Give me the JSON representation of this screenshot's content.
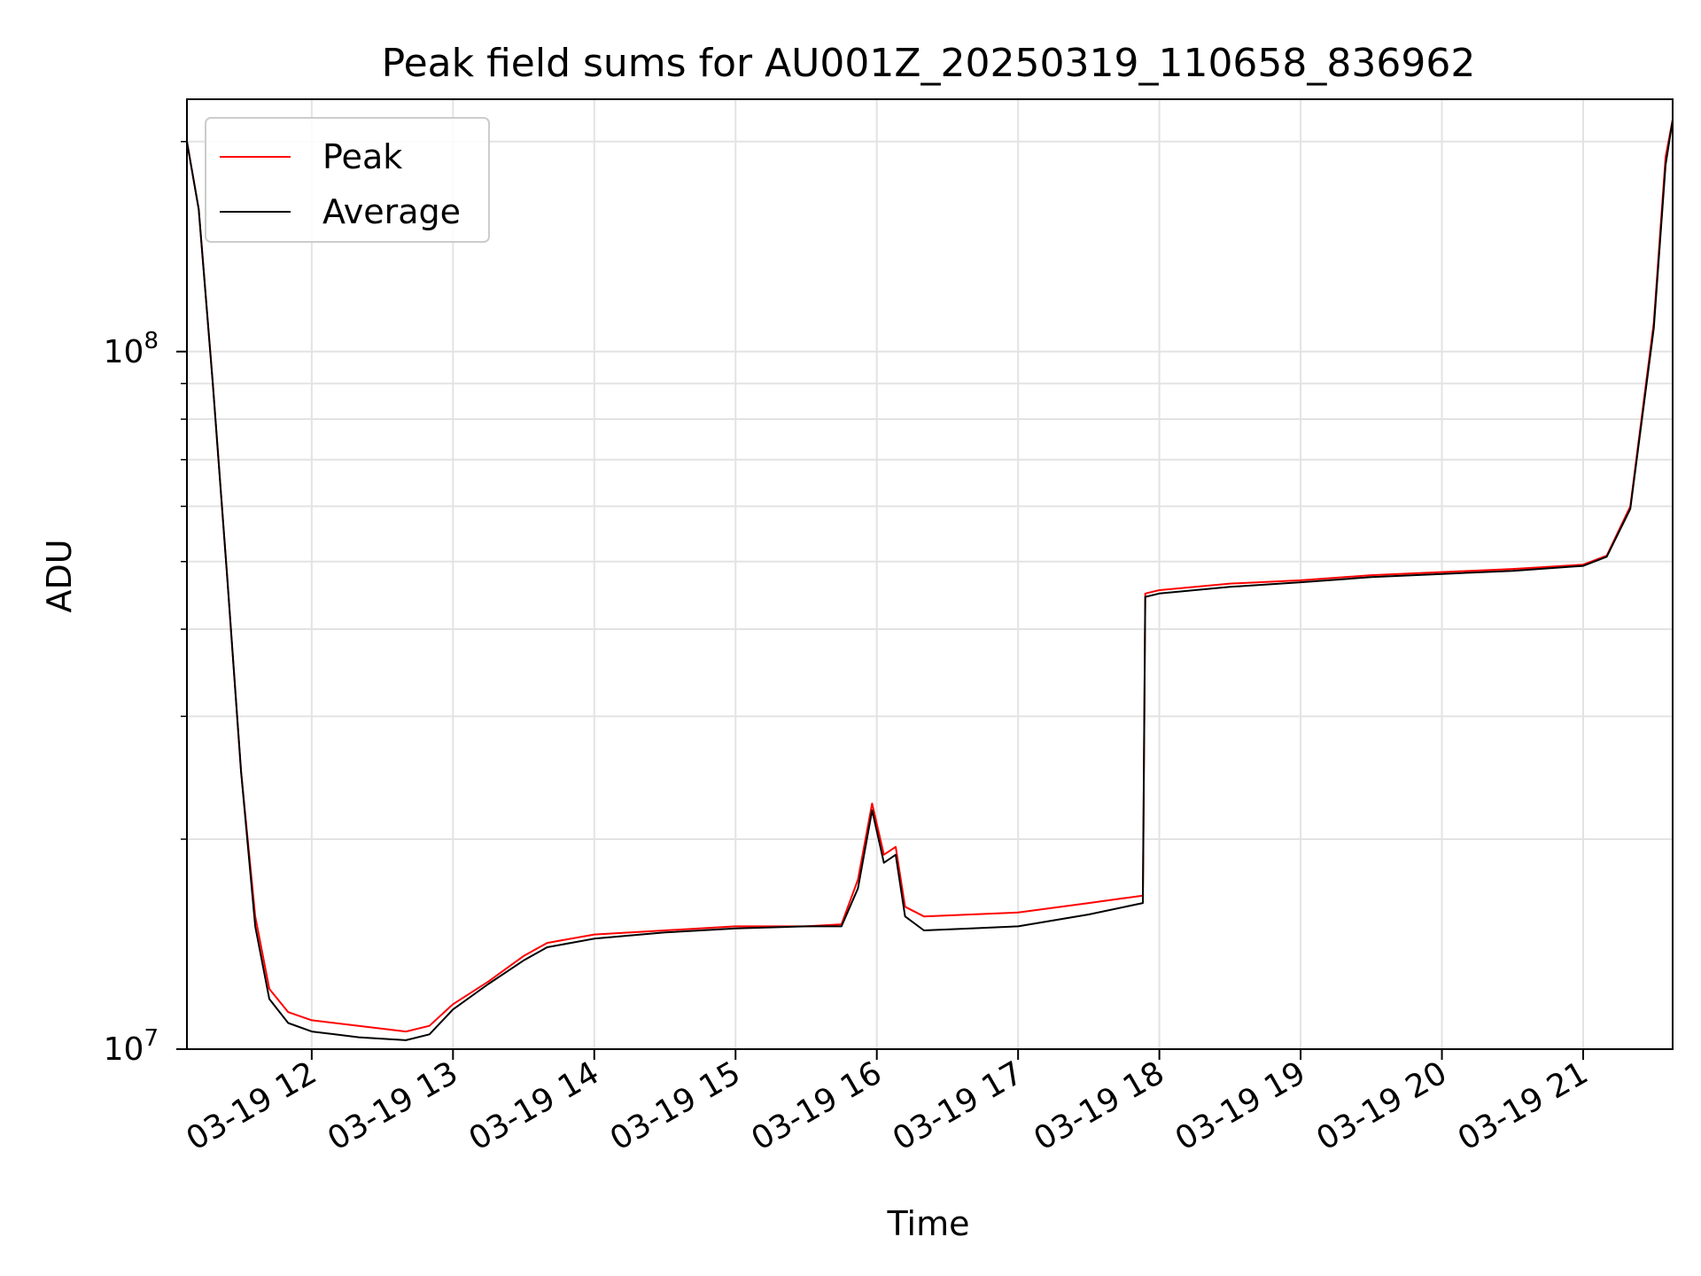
{
  "chart_data": {
    "type": "line",
    "title": "Peak field sums for AU001Z_20250319_110658_836962",
    "xlabel": "Time",
    "ylabel": "ADU",
    "yscale": "log",
    "ylim": [
      10000000,
      230000000
    ],
    "xlim": [
      "2025-03-19 11:07",
      "2025-03-19 21:38"
    ],
    "x_ticks": [
      {
        "value": "2025-03-19 12:00",
        "label": "03-19 12"
      },
      {
        "value": "2025-03-19 13:00",
        "label": "03-19 13"
      },
      {
        "value": "2025-03-19 14:00",
        "label": "03-19 14"
      },
      {
        "value": "2025-03-19 15:00",
        "label": "03-19 15"
      },
      {
        "value": "2025-03-19 16:00",
        "label": "03-19 16"
      },
      {
        "value": "2025-03-19 17:00",
        "label": "03-19 17"
      },
      {
        "value": "2025-03-19 18:00",
        "label": "03-19 18"
      },
      {
        "value": "2025-03-19 19:00",
        "label": "03-19 19"
      },
      {
        "value": "2025-03-19 20:00",
        "label": "03-19 20"
      },
      {
        "value": "2025-03-19 21:00",
        "label": "03-19 21"
      }
    ],
    "y_ticks": [
      {
        "value": 10000000,
        "base": "10",
        "exp": "7"
      },
      {
        "value": 100000000,
        "base": "10",
        "exp": "8"
      }
    ],
    "y_minor_ticks": [
      20000000,
      30000000,
      40000000,
      50000000,
      60000000,
      70000000,
      80000000,
      90000000,
      200000000
    ],
    "grid": true,
    "legend_position": "upper-left",
    "tick_label_rotation": 30,
    "series": [
      {
        "name": "Peak",
        "color": "#ff0000",
        "x": [
          "2025-03-19 11:07",
          "2025-03-19 11:12",
          "2025-03-19 11:18",
          "2025-03-19 11:24",
          "2025-03-19 11:30",
          "2025-03-19 11:36",
          "2025-03-19 11:42",
          "2025-03-19 11:50",
          "2025-03-19 12:00",
          "2025-03-19 12:20",
          "2025-03-19 12:40",
          "2025-03-19 12:50",
          "2025-03-19 13:00",
          "2025-03-19 13:15",
          "2025-03-19 13:30",
          "2025-03-19 13:40",
          "2025-03-19 14:00",
          "2025-03-19 14:30",
          "2025-03-19 15:00",
          "2025-03-19 15:30",
          "2025-03-19 15:45",
          "2025-03-19 15:52",
          "2025-03-19 15:58",
          "2025-03-19 16:03",
          "2025-03-19 16:08",
          "2025-03-19 16:12",
          "2025-03-19 16:20",
          "2025-03-19 16:40",
          "2025-03-19 17:00",
          "2025-03-19 17:30",
          "2025-03-19 17:53",
          "2025-03-19 17:54",
          "2025-03-19 18:00",
          "2025-03-19 18:30",
          "2025-03-19 19:00",
          "2025-03-19 19:30",
          "2025-03-19 20:00",
          "2025-03-19 20:30",
          "2025-03-19 21:00",
          "2025-03-19 21:10",
          "2025-03-19 21:20",
          "2025-03-19 21:30",
          "2025-03-19 21:35",
          "2025-03-19 21:38"
        ],
        "y": [
          200000000,
          160000000,
          90000000,
          48000000,
          25000000,
          15500000,
          12200000,
          11300000,
          11000000,
          10800000,
          10600000,
          10800000,
          11600000,
          12500000,
          13600000,
          14200000,
          14600000,
          14800000,
          15000000,
          15000000,
          15100000,
          17500000,
          22500000,
          19000000,
          19500000,
          16000000,
          15500000,
          15600000,
          15700000,
          16200000,
          16600000,
          45000000,
          45500000,
          46500000,
          47000000,
          47800000,
          48300000,
          48800000,
          49500000,
          51000000,
          60000000,
          110000000,
          190000000,
          215000000
        ]
      },
      {
        "name": "Average",
        "color": "#000000",
        "x": [
          "2025-03-19 11:07",
          "2025-03-19 11:12",
          "2025-03-19 11:18",
          "2025-03-19 11:24",
          "2025-03-19 11:30",
          "2025-03-19 11:36",
          "2025-03-19 11:42",
          "2025-03-19 11:50",
          "2025-03-19 12:00",
          "2025-03-19 12:20",
          "2025-03-19 12:40",
          "2025-03-19 12:50",
          "2025-03-19 13:00",
          "2025-03-19 13:15",
          "2025-03-19 13:30",
          "2025-03-19 13:40",
          "2025-03-19 14:00",
          "2025-03-19 14:30",
          "2025-03-19 15:00",
          "2025-03-19 15:30",
          "2025-03-19 15:45",
          "2025-03-19 15:52",
          "2025-03-19 15:58",
          "2025-03-19 16:03",
          "2025-03-19 16:08",
          "2025-03-19 16:12",
          "2025-03-19 16:20",
          "2025-03-19 16:40",
          "2025-03-19 17:00",
          "2025-03-19 17:30",
          "2025-03-19 17:53",
          "2025-03-19 17:54",
          "2025-03-19 18:00",
          "2025-03-19 18:30",
          "2025-03-19 19:00",
          "2025-03-19 19:30",
          "2025-03-19 20:00",
          "2025-03-19 20:30",
          "2025-03-19 21:00",
          "2025-03-19 21:10",
          "2025-03-19 21:20",
          "2025-03-19 21:30",
          "2025-03-19 21:35",
          "2025-03-19 21:38"
        ],
        "y": [
          200000000,
          160000000,
          90000000,
          48000000,
          25000000,
          15000000,
          11800000,
          10900000,
          10600000,
          10400000,
          10300000,
          10500000,
          11400000,
          12400000,
          13400000,
          14000000,
          14400000,
          14700000,
          14900000,
          15000000,
          15000000,
          17000000,
          22000000,
          18500000,
          19000000,
          15500000,
          14800000,
          14900000,
          15000000,
          15600000,
          16200000,
          44500000,
          45000000,
          46000000,
          46700000,
          47500000,
          48000000,
          48500000,
          49300000,
          50800000,
          59500000,
          108000000,
          185000000,
          215000000
        ]
      }
    ]
  }
}
